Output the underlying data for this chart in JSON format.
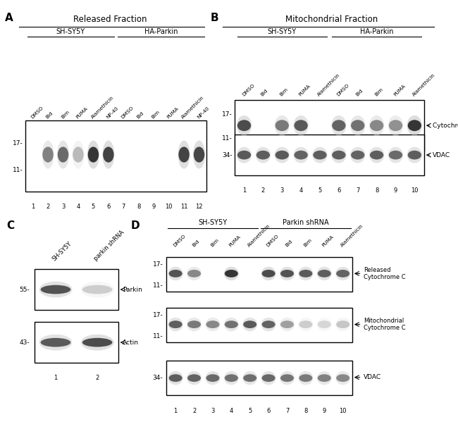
{
  "panel_A": {
    "label": "A",
    "title": "Released Fraction",
    "group1_label": "SH-SY5Y",
    "group2_label": "HA-Parkin",
    "lane_labels": [
      "DMSO",
      "Bid",
      "Bim",
      "PUMA",
      "Alamethicin",
      "NP-40",
      "DMSO",
      "Bid",
      "Bim",
      "PUMA",
      "Alamethicin",
      "NP-40"
    ],
    "lane_numbers": [
      "1",
      "2",
      "3",
      "4",
      "5",
      "6",
      "7",
      "8",
      "9",
      "10",
      "11",
      "12"
    ],
    "bands": [
      {
        "lane": 2,
        "intensity": 0.55
      },
      {
        "lane": 3,
        "intensity": 0.65
      },
      {
        "lane": 4,
        "intensity": 0.3
      },
      {
        "lane": 5,
        "intensity": 0.88
      },
      {
        "lane": 6,
        "intensity": 0.82
      },
      {
        "lane": 11,
        "intensity": 0.82
      },
      {
        "lane": 12,
        "intensity": 0.8
      }
    ]
  },
  "panel_B": {
    "label": "B",
    "title": "Mitochondrial Fraction",
    "group1_label": "SH-SY5Y",
    "group2_label": "HA-Parkin",
    "lane_labels": [
      "DMSO",
      "Bid",
      "Bim",
      "PUMA",
      "Alamethicin",
      "DMSO",
      "Bid",
      "Bim",
      "PUMA",
      "Alamethicin"
    ],
    "lane_numbers": [
      "1",
      "2",
      "3",
      "4",
      "5",
      "6",
      "7",
      "8",
      "9",
      "10"
    ],
    "label_top": "Cytochrome C",
    "label_bottom": "VDAC",
    "top_bands": [
      {
        "lane": 1,
        "intensity": 0.78
      },
      {
        "lane": 3,
        "intensity": 0.58
      },
      {
        "lane": 4,
        "intensity": 0.72
      },
      {
        "lane": 6,
        "intensity": 0.68
      },
      {
        "lane": 7,
        "intensity": 0.62
      },
      {
        "lane": 8,
        "intensity": 0.52
      },
      {
        "lane": 9,
        "intensity": 0.48
      },
      {
        "lane": 10,
        "intensity": 0.88
      }
    ],
    "bottom_bands": [
      {
        "lane": 1,
        "intensity": 0.72
      },
      {
        "lane": 2,
        "intensity": 0.7
      },
      {
        "lane": 3,
        "intensity": 0.72
      },
      {
        "lane": 4,
        "intensity": 0.68
      },
      {
        "lane": 5,
        "intensity": 0.7
      },
      {
        "lane": 6,
        "intensity": 0.7
      },
      {
        "lane": 7,
        "intensity": 0.68
      },
      {
        "lane": 8,
        "intensity": 0.7
      },
      {
        "lane": 9,
        "intensity": 0.65
      },
      {
        "lane": 10,
        "intensity": 0.7
      }
    ]
  },
  "panel_C": {
    "label": "C",
    "lane_labels": [
      "SH-SY5Y",
      "parkin shRNA"
    ],
    "lane_numbers": [
      "1",
      "2"
    ],
    "top_label": "Parkin",
    "bottom_label": "Actin",
    "mw_top": "55",
    "mw_bottom": "43",
    "top_bands": [
      {
        "lane": 1,
        "intensity": 0.75
      },
      {
        "lane": 2,
        "intensity": 0.22
      }
    ],
    "bottom_bands": [
      {
        "lane": 1,
        "intensity": 0.72
      },
      {
        "lane": 2,
        "intensity": 0.78
      }
    ]
  },
  "panel_D": {
    "label": "D",
    "group1_label": "SH-SY5Y",
    "group2_label": "Parkin shRNA",
    "lane_labels": [
      "DMSO",
      "Bid",
      "Bim",
      "PUMA",
      "Alamethicin",
      "DMSO",
      "Bid",
      "Bim",
      "PUMA",
      "Alamethicin"
    ],
    "lane_numbers": [
      "1",
      "2",
      "3",
      "4",
      "5",
      "6",
      "7",
      "8",
      "9",
      "10"
    ],
    "label_top": "Released\nCytochrome C",
    "label_mid": "Mitochondrial\nCytochrome C",
    "label_bottom": "VDAC",
    "top_bands": [
      {
        "lane": 1,
        "intensity": 0.75
      },
      {
        "lane": 2,
        "intensity": 0.52
      },
      {
        "lane": 4,
        "intensity": 0.88
      },
      {
        "lane": 6,
        "intensity": 0.78
      },
      {
        "lane": 7,
        "intensity": 0.75
      },
      {
        "lane": 8,
        "intensity": 0.72
      },
      {
        "lane": 9,
        "intensity": 0.7
      },
      {
        "lane": 10,
        "intensity": 0.68
      }
    ],
    "mid_bands": [
      {
        "lane": 1,
        "intensity": 0.7
      },
      {
        "lane": 2,
        "intensity": 0.58
      },
      {
        "lane": 3,
        "intensity": 0.52
      },
      {
        "lane": 4,
        "intensity": 0.62
      },
      {
        "lane": 5,
        "intensity": 0.72
      },
      {
        "lane": 6,
        "intensity": 0.68
      },
      {
        "lane": 7,
        "intensity": 0.42
      },
      {
        "lane": 8,
        "intensity": 0.22
      },
      {
        "lane": 9,
        "intensity": 0.18
      },
      {
        "lane": 10,
        "intensity": 0.25
      }
    ],
    "bottom_bands": [
      {
        "lane": 1,
        "intensity": 0.7
      },
      {
        "lane": 2,
        "intensity": 0.68
      },
      {
        "lane": 3,
        "intensity": 0.65
      },
      {
        "lane": 4,
        "intensity": 0.62
      },
      {
        "lane": 5,
        "intensity": 0.63
      },
      {
        "lane": 6,
        "intensity": 0.66
      },
      {
        "lane": 7,
        "intensity": 0.6
      },
      {
        "lane": 8,
        "intensity": 0.58
      },
      {
        "lane": 9,
        "intensity": 0.55
      },
      {
        "lane": 10,
        "intensity": 0.52
      }
    ]
  }
}
